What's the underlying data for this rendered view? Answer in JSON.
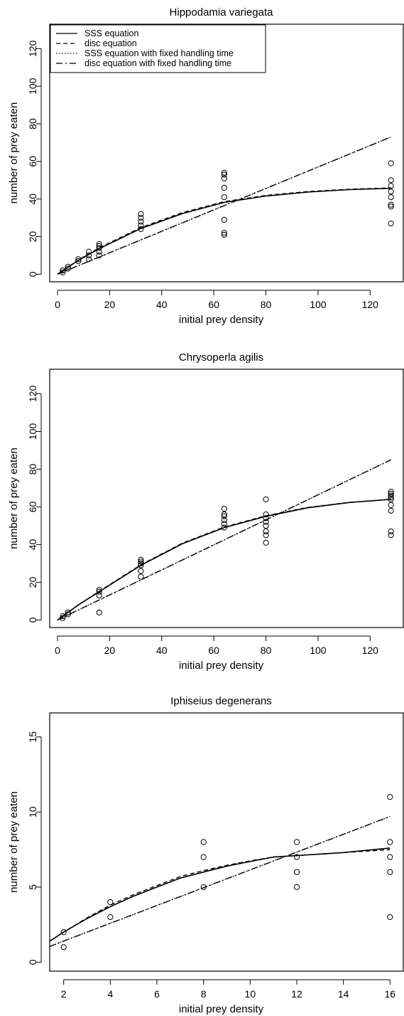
{
  "chart_data": [
    {
      "type": "scatter",
      "title": "Hippodamia  variegata",
      "xlabel": "initial prey density",
      "ylabel": "number of prey eaten",
      "xlim": [
        -3,
        133
      ],
      "ylim": [
        -4,
        133
      ],
      "xticks": [
        0,
        20,
        40,
        60,
        80,
        100,
        120
      ],
      "yticks": [
        0,
        20,
        40,
        60,
        80,
        100,
        120
      ],
      "legend": {
        "position": "top-left",
        "entries": [
          {
            "label": "SSS equation",
            "dash": "solid"
          },
          {
            "label": "disc equation",
            "dash": "dashed"
          },
          {
            "label": "SSS equation with fixed handling time",
            "dash": "dotted"
          },
          {
            "label": "disc equation with fixed handling time",
            "dash": "dotdash"
          }
        ]
      },
      "points": [
        [
          2,
          1
        ],
        [
          2,
          2
        ],
        [
          4,
          3
        ],
        [
          4,
          4
        ],
        [
          8,
          7
        ],
        [
          8,
          8
        ],
        [
          12,
          8
        ],
        [
          12,
          10
        ],
        [
          12,
          12
        ],
        [
          16,
          10
        ],
        [
          16,
          12
        ],
        [
          16,
          14
        ],
        [
          16,
          15
        ],
        [
          16,
          16
        ],
        [
          32,
          24
        ],
        [
          32,
          26
        ],
        [
          32,
          28
        ],
        [
          32,
          30
        ],
        [
          32,
          32
        ],
        [
          64,
          21
        ],
        [
          64,
          22
        ],
        [
          64,
          29
        ],
        [
          64,
          41
        ],
        [
          64,
          46
        ],
        [
          64,
          51
        ],
        [
          64,
          53
        ],
        [
          64,
          54
        ],
        [
          128,
          27
        ],
        [
          128,
          36
        ],
        [
          128,
          37
        ],
        [
          128,
          41
        ],
        [
          128,
          44
        ],
        [
          128,
          47
        ],
        [
          128,
          50
        ],
        [
          128,
          59
        ]
      ],
      "series": [
        {
          "name": "SSS equation",
          "dash": "solid",
          "x": [
            0,
            8,
            16,
            32,
            48,
            64,
            80,
            96,
            112,
            128
          ],
          "y": [
            0,
            7.4,
            13.6,
            24.3,
            32.3,
            38.2,
            41.6,
            43.7,
            45.0,
            45.7
          ]
        },
        {
          "name": "disc equation",
          "dash": "dashed",
          "x": [
            0,
            8,
            16,
            32,
            48,
            64,
            80,
            96,
            112,
            128
          ],
          "y": [
            0,
            7.6,
            14.0,
            24.8,
            32.8,
            38.6,
            41.9,
            44.0,
            45.2,
            45.9
          ]
        },
        {
          "name": "SSS equation with fixed handling time",
          "dash": "dotted",
          "x": [
            0,
            128
          ],
          "y": [
            0,
            73
          ]
        },
        {
          "name": "disc equation with fixed handling time",
          "dash": "dotdash",
          "x": [
            0,
            128
          ],
          "y": [
            0,
            73
          ]
        }
      ]
    },
    {
      "type": "scatter",
      "title": "Chrysoperla agilis",
      "xlabel": "initial prey density",
      "ylabel": "number of prey eaten",
      "xlim": [
        -3,
        133
      ],
      "ylim": [
        -4,
        133
      ],
      "xticks": [
        0,
        20,
        40,
        60,
        80,
        100,
        120
      ],
      "yticks": [
        0,
        20,
        40,
        60,
        80,
        100,
        120
      ],
      "points": [
        [
          2,
          1
        ],
        [
          2,
          2
        ],
        [
          4,
          3
        ],
        [
          4,
          4
        ],
        [
          16,
          4
        ],
        [
          16,
          13
        ],
        [
          16,
          15
        ],
        [
          16,
          16
        ],
        [
          32,
          23
        ],
        [
          32,
          26
        ],
        [
          32,
          29
        ],
        [
          32,
          30
        ],
        [
          32,
          31
        ],
        [
          32,
          32
        ],
        [
          64,
          49
        ],
        [
          64,
          51
        ],
        [
          64,
          53
        ],
        [
          64,
          55
        ],
        [
          64,
          56
        ],
        [
          64,
          59
        ],
        [
          80,
          41
        ],
        [
          80,
          45
        ],
        [
          80,
          47
        ],
        [
          80,
          50
        ],
        [
          80,
          52
        ],
        [
          80,
          54
        ],
        [
          80,
          56
        ],
        [
          80,
          64
        ],
        [
          128,
          45
        ],
        [
          128,
          47
        ],
        [
          128,
          58
        ],
        [
          128,
          61
        ],
        [
          128,
          64
        ],
        [
          128,
          65
        ],
        [
          128,
          66
        ],
        [
          128,
          67
        ],
        [
          128,
          68
        ]
      ],
      "series": [
        {
          "name": "SSS equation",
          "dash": "solid",
          "x": [
            0,
            8,
            16,
            32,
            48,
            64,
            80,
            96,
            112,
            128
          ],
          "y": [
            0,
            8.0,
            15.0,
            29.0,
            40.5,
            49.0,
            55.0,
            59.5,
            62.3,
            64.0
          ]
        },
        {
          "name": "disc equation",
          "dash": "dashed",
          "x": [
            0,
            8,
            16,
            32,
            48,
            64,
            80,
            96,
            112,
            128
          ],
          "y": [
            0,
            8.0,
            15.2,
            29.3,
            40.8,
            49.3,
            55.3,
            59.7,
            62.4,
            64.0
          ]
        },
        {
          "name": "SSS equation with fixed handling time",
          "dash": "dotted",
          "x": [
            0,
            128
          ],
          "y": [
            0,
            85
          ]
        },
        {
          "name": "disc equation with fixed handling time",
          "dash": "dotdash",
          "x": [
            0,
            128
          ],
          "y": [
            0,
            85
          ]
        }
      ]
    },
    {
      "type": "scatter",
      "title": "Iphiseius degenerans",
      "xlabel": "initial prey density",
      "ylabel": "number of prey eaten",
      "xlim": [
        1.4,
        16.6
      ],
      "ylim": [
        -0.6,
        16.6
      ],
      "xticks": [
        2,
        4,
        6,
        8,
        10,
        12,
        14,
        16
      ],
      "yticks": [
        0,
        5,
        10,
        15
      ],
      "points": [
        [
          2,
          1
        ],
        [
          2,
          2
        ],
        [
          4,
          3
        ],
        [
          4,
          4
        ],
        [
          8,
          5
        ],
        [
          8,
          7
        ],
        [
          8,
          8
        ],
        [
          12,
          5
        ],
        [
          12,
          6
        ],
        [
          12,
          7
        ],
        [
          12,
          8
        ],
        [
          16,
          3
        ],
        [
          16,
          6
        ],
        [
          16,
          7
        ],
        [
          16,
          8
        ],
        [
          16,
          11
        ]
      ],
      "series": [
        {
          "name": "SSS equation",
          "dash": "solid",
          "x": [
            1.4,
            2,
            3,
            4,
            5,
            6,
            7,
            8,
            9,
            10,
            11,
            12,
            13,
            14,
            15,
            16
          ],
          "y": [
            1.4,
            2.0,
            2.9,
            3.7,
            4.4,
            5.0,
            5.6,
            6.0,
            6.4,
            6.7,
            7.0,
            7.1,
            7.2,
            7.3,
            7.45,
            7.6
          ]
        },
        {
          "name": "disc equation",
          "dash": "dashed",
          "x": [
            1.4,
            2,
            3,
            4,
            5,
            6,
            7,
            8,
            9,
            10,
            11,
            12,
            13,
            14,
            15,
            16
          ],
          "y": [
            1.4,
            2.0,
            2.95,
            3.8,
            4.5,
            5.1,
            5.7,
            6.1,
            6.45,
            6.75,
            7.0,
            7.1,
            7.2,
            7.3,
            7.4,
            7.5
          ]
        },
        {
          "name": "SSS equation with fixed handling time",
          "dash": "dotted",
          "x": [
            1.4,
            16
          ],
          "y": [
            1.05,
            9.7
          ]
        },
        {
          "name": "disc equation with fixed handling time",
          "dash": "dotdash",
          "x": [
            1.4,
            16
          ],
          "y": [
            1.05,
            9.7
          ]
        }
      ]
    }
  ]
}
